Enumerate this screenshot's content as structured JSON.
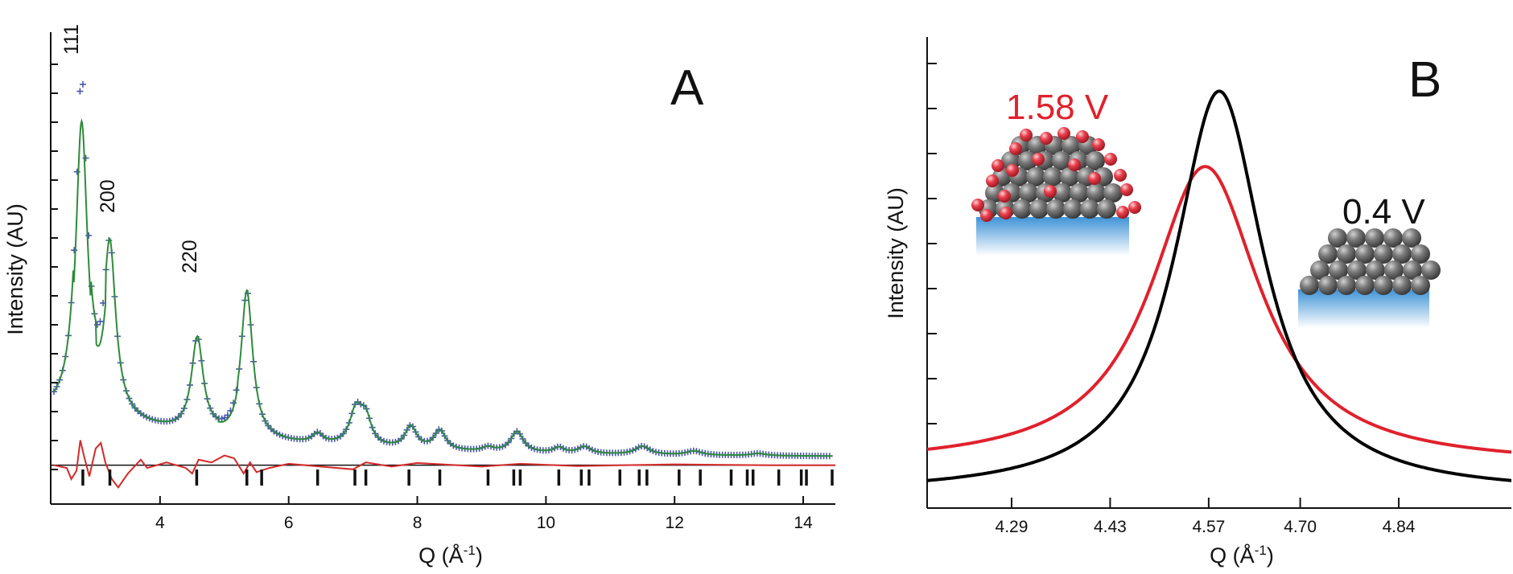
{
  "chart_data": [
    {
      "panel": "A",
      "type": "scatter",
      "xlabel": "Q (Å",
      "xlabel_sup": "-1",
      "xlabel_close": ")",
      "ylabel": "Intensity (AU)",
      "xlim": [
        2.3,
        14.5
      ],
      "ylim": [
        -1.4,
        15.6
      ],
      "x_ticks": [
        4,
        6,
        8,
        10,
        12,
        14
      ],
      "x_tick_labels": [
        "4",
        "6",
        "8",
        "10",
        "12",
        "14"
      ],
      "y_tick_count": 15,
      "peak_labels": [
        {
          "text": "111",
          "x": 2.8
        },
        {
          "text": "200",
          "x": 3.2
        },
        {
          "text": "220",
          "x": 4.6
        }
      ],
      "peaks": [
        {
          "center": 2.78,
          "height": 12.0,
          "width": 0.11
        },
        {
          "center": 3.22,
          "height": 5.9,
          "width": 0.11
        },
        {
          "center": 4.58,
          "height": 3.4,
          "width": 0.11
        },
        {
          "center": 5.35,
          "height": 5.3,
          "width": 0.11
        },
        {
          "center": 6.45,
          "height": 0.35,
          "width": 0.1
        },
        {
          "center": 7.05,
          "height": 1.3,
          "width": 0.12
        },
        {
          "center": 7.2,
          "height": 0.9,
          "width": 0.1
        },
        {
          "center": 7.9,
          "height": 0.8,
          "width": 0.11
        },
        {
          "center": 8.35,
          "height": 0.7,
          "width": 0.11
        },
        {
          "center": 9.1,
          "height": 0.15,
          "width": 0.1
        },
        {
          "center": 9.55,
          "height": 0.75,
          "width": 0.12
        },
        {
          "center": 10.2,
          "height": 0.2,
          "width": 0.1
        },
        {
          "center": 10.6,
          "height": 0.25,
          "width": 0.12
        },
        {
          "center": 11.5,
          "height": 0.3,
          "width": 0.14
        },
        {
          "center": 12.3,
          "height": 0.15,
          "width": 0.14
        },
        {
          "center": 13.3,
          "height": 0.08,
          "width": 0.14
        }
      ],
      "background": {
        "base": 0.3,
        "amplitude": 1.5,
        "decay": 0.35,
        "start": 2.6
      },
      "series": [
        {
          "name": "observed",
          "color": "#4a56b0",
          "marker": "+"
        },
        {
          "name": "fit",
          "color": "#2e8b3a"
        },
        {
          "name": "difference",
          "color": "#d42a2a"
        }
      ],
      "difference": [
        [
          2.35,
          0.0
        ],
        [
          2.55,
          -0.1
        ],
        [
          2.62,
          -0.5
        ],
        [
          2.7,
          -0.2
        ],
        [
          2.76,
          0.9
        ],
        [
          2.82,
          0.3
        ],
        [
          2.9,
          -0.4
        ],
        [
          3.0,
          0.6
        ],
        [
          3.08,
          0.8
        ],
        [
          3.15,
          0.1
        ],
        [
          3.25,
          -0.5
        ],
        [
          3.35,
          -0.8
        ],
        [
          3.5,
          -0.3
        ],
        [
          3.7,
          0.2
        ],
        [
          3.8,
          -0.1
        ],
        [
          4.1,
          0.1
        ],
        [
          4.4,
          -0.1
        ],
        [
          4.5,
          -0.3
        ],
        [
          4.6,
          0.2
        ],
        [
          4.8,
          0.1
        ],
        [
          5.0,
          0.35
        ],
        [
          5.15,
          0.25
        ],
        [
          5.3,
          -0.3
        ],
        [
          5.4,
          0.1
        ],
        [
          5.5,
          -0.25
        ],
        [
          5.7,
          -0.1
        ],
        [
          6.0,
          0.05
        ],
        [
          6.5,
          -0.05
        ],
        [
          7.0,
          -0.15
        ],
        [
          7.2,
          0.1
        ],
        [
          7.6,
          -0.05
        ],
        [
          8.0,
          0.08
        ],
        [
          9.0,
          -0.05
        ],
        [
          9.6,
          0.05
        ],
        [
          10.5,
          -0.03
        ],
        [
          12.0,
          0.03
        ],
        [
          13.5,
          0.0
        ],
        [
          14.5,
          0.0
        ]
      ],
      "reflection_ticks": [
        2.8,
        3.22,
        4.57,
        5.35,
        5.58,
        6.45,
        7.03,
        7.2,
        7.87,
        8.35,
        9.1,
        9.5,
        9.6,
        10.2,
        10.55,
        10.67,
        11.15,
        11.45,
        11.57,
        12.07,
        12.4,
        12.88,
        13.13,
        13.22,
        13.62,
        13.97,
        14.05,
        14.45
      ]
    },
    {
      "panel": "B",
      "type": "line",
      "xlabel": "Q (Å",
      "xlabel_sup": "-1",
      "xlabel_close": ")",
      "ylabel": "Intensity (AU)",
      "xlim": [
        4.17,
        5.0
      ],
      "ylim": [
        0,
        10
      ],
      "x_ticks": [
        4.29,
        4.43,
        4.57,
        4.7,
        4.84
      ],
      "x_tick_labels": [
        "4.29",
        "4.43",
        "4.57",
        "4.70",
        "4.84"
      ],
      "y_tick_count": 9,
      "series": [
        {
          "name": "0.4 V",
          "color": "#000000",
          "center": 4.585,
          "height": 8.55,
          "width": 0.077,
          "base": 0.3
        },
        {
          "name": "1.58 V",
          "color": "#e0212c",
          "center": 4.565,
          "height": 6.35,
          "width": 0.095,
          "base": 0.9
        }
      ],
      "annotations": [
        {
          "text": "1.58 V",
          "color": "#e0212c"
        },
        {
          "text": "0.4 V",
          "color": "#111111"
        }
      ]
    }
  ],
  "colors": {
    "atom_gray": "#6e6e6e",
    "atom_red": "#e8404c",
    "substrate_blue": "#4a9bd8"
  }
}
